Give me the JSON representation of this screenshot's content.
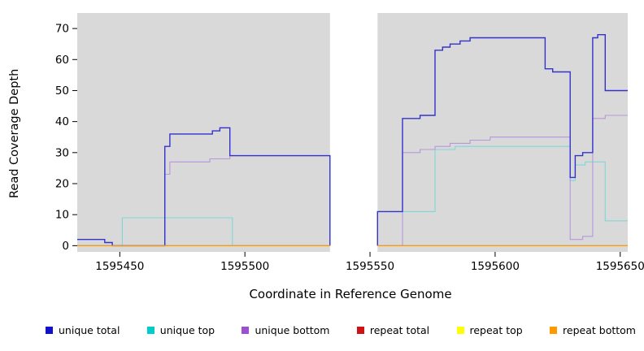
{
  "chart_data": {
    "type": "line",
    "subtype": "step-after",
    "title": "",
    "xlabel": "Coordinate in Reference Genome",
    "ylabel": "Read Coverage Depth",
    "xlim": [
      1595433,
      1595653
    ],
    "ylim": [
      -2,
      75
    ],
    "xticks": [
      1595450,
      1595500,
      1595550,
      1595600,
      1595650
    ],
    "yticks": [
      0,
      10,
      20,
      30,
      40,
      50,
      60,
      70
    ],
    "grid": false,
    "legend_position": "bottom",
    "panel_background": "#d9d9d9",
    "axis_color": "#000000",
    "masked_region": {
      "x_start": 1595534,
      "x_end": 1595553,
      "color": "#ffffff"
    },
    "series": [
      {
        "name": "unique total",
        "slug": "unique-total",
        "color": "#3333cc",
        "legend_color": "#1111cc",
        "width": 1.4,
        "z": 3,
        "segments": [
          [
            [
              1595433,
              2
            ],
            [
              1595444,
              1
            ],
            [
              1595447,
              0
            ],
            [
              1595468,
              32
            ],
            [
              1595470,
              36
            ],
            [
              1595487,
              37
            ],
            [
              1595490,
              38
            ],
            [
              1595494,
              29
            ],
            [
              1595534,
              0
            ]
          ],
          [
            [
              1595553,
              0
            ],
            [
              1595553,
              11
            ],
            [
              1595563,
              41
            ],
            [
              1595570,
              42
            ],
            [
              1595576,
              63
            ],
            [
              1595579,
              64
            ],
            [
              1595582,
              65
            ],
            [
              1595586,
              66
            ],
            [
              1595590,
              67
            ],
            [
              1595620,
              57
            ],
            [
              1595623,
              56
            ],
            [
              1595630,
              22
            ],
            [
              1595632,
              29
            ],
            [
              1595635,
              30
            ],
            [
              1595639,
              67
            ],
            [
              1595641,
              68
            ],
            [
              1595644,
              50
            ],
            [
              1595653,
              50
            ]
          ]
        ]
      },
      {
        "name": "unique top",
        "slug": "unique-top",
        "color": "#7dd7d7",
        "legend_color": "#00cccc",
        "width": 1.1,
        "z": 1,
        "segments": [
          [
            [
              1595433,
              0
            ],
            [
              1595451,
              9
            ],
            [
              1595495,
              0
            ],
            [
              1595534,
              0
            ]
          ],
          [
            [
              1595553,
              0
            ],
            [
              1595553,
              11
            ],
            [
              1595576,
              31
            ],
            [
              1595584,
              32
            ],
            [
              1595630,
              21
            ],
            [
              1595632,
              26
            ],
            [
              1595636,
              27
            ],
            [
              1595644,
              8
            ],
            [
              1595653,
              8
            ]
          ]
        ]
      },
      {
        "name": "unique bottom",
        "slug": "unique-bottom",
        "color": "#b896da",
        "legend_color": "#9d4fd4",
        "width": 1.1,
        "z": 2,
        "segments": [
          [
            [
              1595433,
              0
            ],
            [
              1595468,
              23
            ],
            [
              1595470,
              27
            ],
            [
              1595486,
              28
            ],
            [
              1595494,
              29
            ],
            [
              1595534,
              0
            ]
          ],
          [
            [
              1595553,
              0
            ],
            [
              1595563,
              30
            ],
            [
              1595570,
              31
            ],
            [
              1595576,
              32
            ],
            [
              1595582,
              33
            ],
            [
              1595590,
              34
            ],
            [
              1595598,
              35
            ],
            [
              1595630,
              2
            ],
            [
              1595635,
              3
            ],
            [
              1595639,
              41
            ],
            [
              1595644,
              42
            ],
            [
              1595653,
              42
            ]
          ]
        ]
      },
      {
        "name": "repeat total",
        "slug": "repeat-total",
        "color": "#cc0000",
        "legend_color": "#cc1414",
        "width": 1.1,
        "z": 4,
        "segments": [
          [
            [
              1595433,
              0
            ],
            [
              1595534,
              0
            ]
          ],
          [
            [
              1595553,
              0
            ],
            [
              1595653,
              0
            ]
          ]
        ]
      },
      {
        "name": "repeat top",
        "slug": "repeat-top",
        "color": "#ffff00",
        "legend_color": "#ffff00",
        "width": 1.1,
        "z": 5,
        "segments": [
          [
            [
              1595433,
              0
            ],
            [
              1595534,
              0
            ]
          ],
          [
            [
              1595553,
              0
            ],
            [
              1595653,
              0
            ]
          ]
        ]
      },
      {
        "name": "repeat bottom",
        "slug": "repeat-bottom",
        "color": "#ff9900",
        "legend_color": "#ff9900",
        "width": 1.1,
        "z": 6,
        "segments": [
          [
            [
              1595433,
              0
            ],
            [
              1595534,
              0
            ]
          ],
          [
            [
              1595553,
              0
            ],
            [
              1595653,
              0
            ]
          ]
        ]
      }
    ]
  }
}
